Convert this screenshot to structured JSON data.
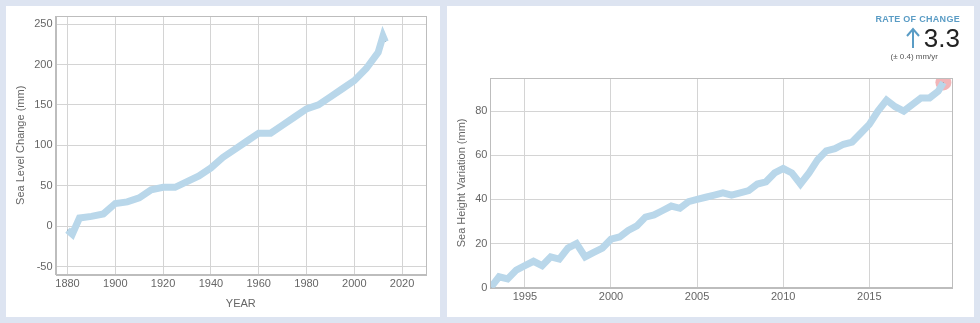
{
  "chart_data": [
    {
      "type": "line",
      "x_label": "YEAR",
      "y_label": "Sea Level Change (mm)",
      "x": [
        1880,
        1882,
        1885,
        1890,
        1895,
        1900,
        1905,
        1910,
        1915,
        1920,
        1925,
        1930,
        1935,
        1940,
        1945,
        1950,
        1955,
        1960,
        1965,
        1970,
        1975,
        1980,
        1985,
        1990,
        1995,
        2000,
        2005,
        2010,
        2012,
        2013
      ],
      "values": [
        -5,
        -10,
        10,
        12,
        15,
        28,
        30,
        35,
        45,
        48,
        48,
        55,
        62,
        72,
        85,
        95,
        105,
        115,
        115,
        125,
        135,
        145,
        150,
        160,
        170,
        180,
        195,
        215,
        235,
        228
      ],
      "color": "#1b1b1b",
      "xlim": [
        1875,
        2030
      ],
      "xticks": [
        1880,
        1900,
        1920,
        1940,
        1960,
        1980,
        2000,
        2020
      ],
      "ylim": [
        -60,
        260
      ],
      "yticks": [
        -50,
        0,
        50,
        100,
        150,
        200,
        250
      ],
      "grid": true
    },
    {
      "type": "line",
      "y_label": "Sea Height Variation (mm)",
      "annotation": {
        "title": "RATE OF CHANGE",
        "value": "3.3",
        "note": "(± 0.4) mm/yr"
      },
      "x": [
        1993.0,
        1993.5,
        1994.0,
        1994.5,
        1995.0,
        1995.5,
        1996.0,
        1996.5,
        1997.0,
        1997.5,
        1998.0,
        1998.5,
        1999.0,
        1999.5,
        2000.0,
        2000.5,
        2001.0,
        2001.5,
        2002.0,
        2002.5,
        2003.0,
        2003.5,
        2004.0,
        2004.5,
        2005.0,
        2005.5,
        2006.0,
        2006.5,
        2007.0,
        2007.5,
        2008.0,
        2008.5,
        2009.0,
        2009.5,
        2010.0,
        2010.5,
        2011.0,
        2011.5,
        2012.0,
        2012.5,
        2013.0,
        2013.5,
        2014.0,
        2014.5,
        2015.0,
        2015.5,
        2016.0,
        2016.5,
        2017.0,
        2017.5,
        2018.0,
        2018.5,
        2019.0,
        2019.3
      ],
      "values": [
        0,
        5,
        4,
        8,
        10,
        12,
        10,
        14,
        13,
        18,
        20,
        14,
        16,
        18,
        22,
        23,
        26,
        28,
        32,
        33,
        35,
        37,
        36,
        39,
        40,
        41,
        42,
        43,
        42,
        43,
        44,
        47,
        48,
        52,
        54,
        52,
        47,
        52,
        58,
        62,
        63,
        65,
        66,
        70,
        74,
        80,
        85,
        82,
        80,
        83,
        86,
        86,
        89,
        93
      ],
      "color": "#1b1b1b",
      "xlim": [
        1993,
        2019.8
      ],
      "xticks": [
        1995,
        2000,
        2005,
        2010,
        2015
      ],
      "ylim": [
        0,
        95
      ],
      "yticks": [
        0,
        20,
        40,
        60,
        80
      ],
      "grid": true
    }
  ]
}
